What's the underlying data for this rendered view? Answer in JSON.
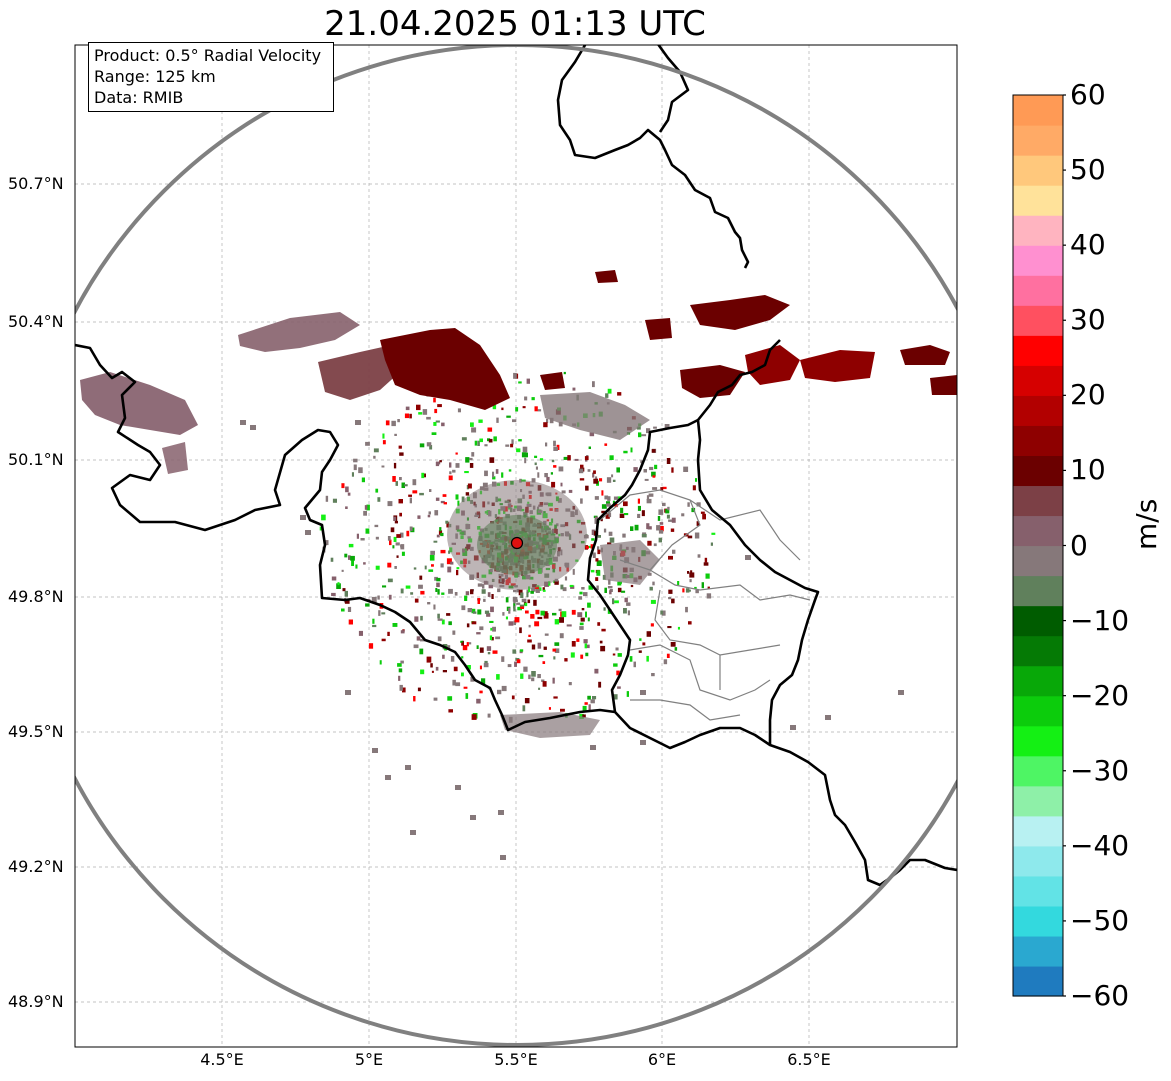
{
  "title": "21.04.2025 01:13 UTC",
  "info": {
    "product": "Product: 0.5° Radial Velocity",
    "range": "Range: 125 km",
    "source": "Data: RMIB"
  },
  "axes": {
    "lat_ticks": [
      "50.7°N",
      "50.4°N",
      "50.1°N",
      "49.8°N",
      "49.5°N",
      "49.2°N",
      "48.9°N"
    ],
    "lon_ticks": [
      "4.5°E",
      "5°E",
      "5.5°E",
      "6°E",
      "6.5°E"
    ],
    "grid": true
  },
  "colorbar": {
    "units": "m/s",
    "ticks": [
      "60",
      "50",
      "40",
      "30",
      "20",
      "10",
      "0",
      "−10",
      "−20",
      "−30",
      "−40",
      "−50",
      "−60"
    ],
    "min": -60,
    "max": 60,
    "colors": [
      "#1f7bbf",
      "#2aa8d0",
      "#33d9de",
      "#62e3e6",
      "#8ee9ec",
      "#b8f1f2",
      "#8ef0a8",
      "#4ef564",
      "#14f014",
      "#0ccc0c",
      "#08a808",
      "#057a05",
      "#005c00",
      "#60805c",
      "#86787a",
      "#86606c",
      "#7c4046",
      "#6b0000",
      "#8e0000",
      "#b20000",
      "#d60000",
      "#ff0000",
      "#ff5060",
      "#ff70a0",
      "#ff90d0",
      "#ffb4c0",
      "#ffe29a",
      "#ffc87c",
      "#ffaa66",
      "#ff9a55"
    ]
  },
  "radar": {
    "site_lon": 5.5,
    "site_lat": 49.91,
    "range_km": 125
  },
  "colors": {
    "border": "#000000",
    "range_ring": "#808080",
    "provinces": "#808080",
    "grid": "#b0b0b0",
    "site_marker": "#e01010"
  }
}
